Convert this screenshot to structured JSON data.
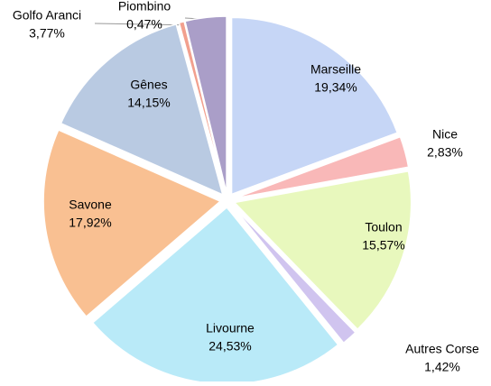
{
  "chart_data": {
    "type": "pie",
    "categories": [
      "Marseille",
      "Nice",
      "Toulon",
      "Autres Corse",
      "Livourne",
      "Savone",
      "Gênes",
      "Piombino",
      "Golfo Aranci"
    ],
    "values": [
      19.34,
      2.83,
      15.57,
      1.42,
      24.53,
      17.92,
      14.15,
      0.47,
      3.77
    ],
    "value_labels": [
      "19,34%",
      "2,83%",
      "15,57%",
      "1,42%",
      "24,53%",
      "17,92%",
      "14,15%",
      "0,47%",
      "3,77%"
    ],
    "colors": [
      "#c6d6f6",
      "#f9b8b8",
      "#e8f8bd",
      "#d0c4ef",
      "#b9eaf8",
      "#f9c092",
      "#b9cae2",
      "#f2a08e",
      "#aa9ec8"
    ]
  }
}
